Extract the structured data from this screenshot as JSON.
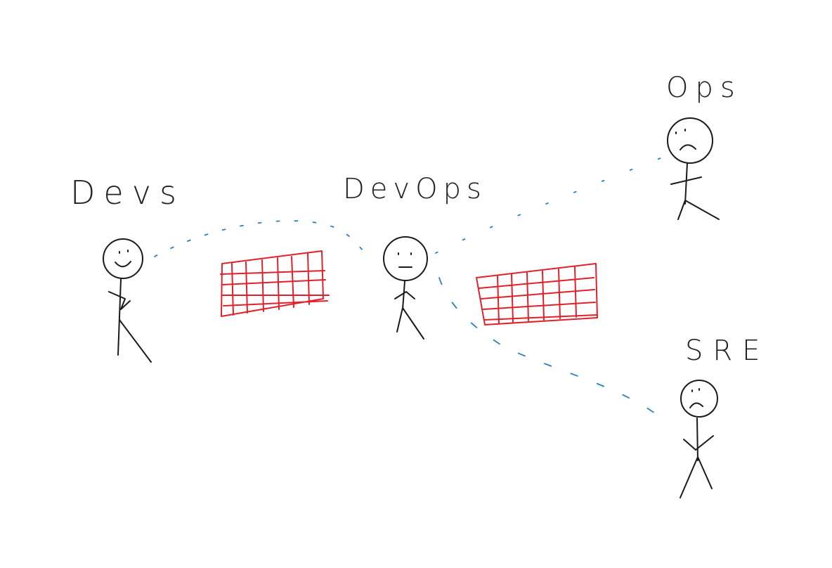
{
  "labels": {
    "devs": "Devs",
    "devops": "DevOps",
    "ops": "Ops",
    "sre": "SRE"
  },
  "colors": {
    "wall": "#e0212b",
    "link": "#2a7fc0",
    "ink": "#1a1a1a"
  },
  "people": {
    "devs": {
      "expression": "smile"
    },
    "devops": {
      "expression": "neutral"
    },
    "ops": {
      "expression": "frown"
    },
    "sre": {
      "expression": "frown"
    }
  }
}
